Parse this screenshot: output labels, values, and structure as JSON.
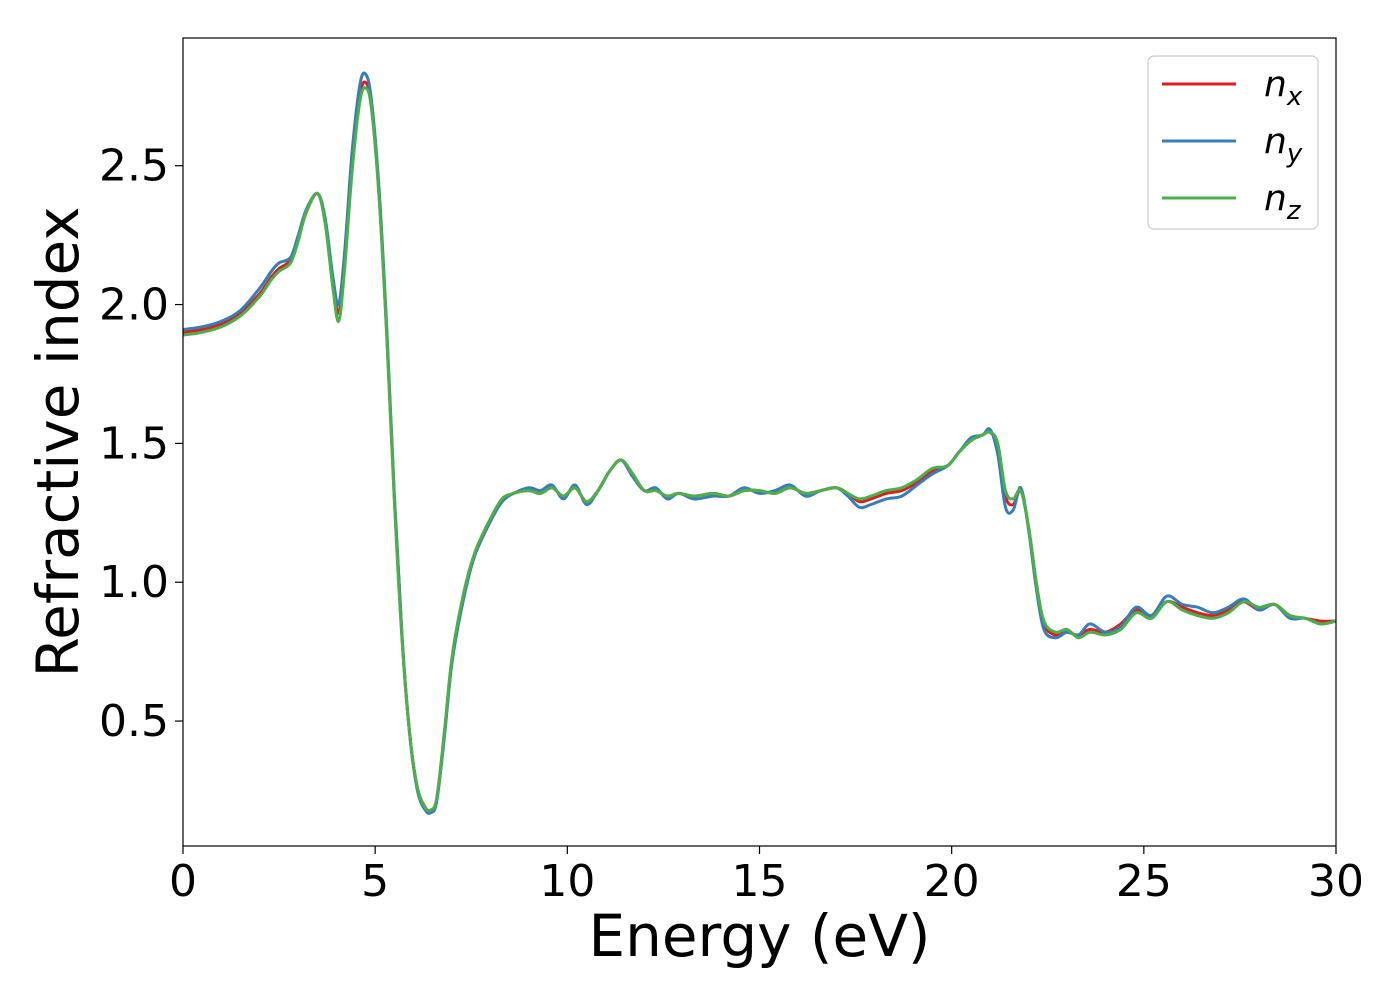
{
  "chart_data": {
    "type": "line",
    "xlabel": "Energy (eV)",
    "ylabel": "Refractive index",
    "xlim": [
      0,
      30
    ],
    "ylim": [
      0.05,
      2.96
    ],
    "xticks": [
      0,
      5,
      10,
      15,
      20,
      25,
      30
    ],
    "xtick_labels": [
      "0",
      "5",
      "10",
      "15",
      "20",
      "25",
      "30"
    ],
    "yticks": [
      0.5,
      1.0,
      1.5,
      2.0,
      2.5
    ],
    "ytick_labels": [
      "0.5",
      "1.0",
      "1.5",
      "2.0",
      "2.5"
    ],
    "grid": false,
    "legend_position": "top-right",
    "series": [
      {
        "name": "n",
        "subscript": "x",
        "color": "#e41a1c",
        "x": [
          0,
          0.5,
          1,
          1.5,
          2,
          2.3,
          2.5,
          2.8,
          3.0,
          3.2,
          3.5,
          3.7,
          3.9,
          4.05,
          4.2,
          4.4,
          4.6,
          4.75,
          4.9,
          5.1,
          5.3,
          5.5,
          5.7,
          5.9,
          6.1,
          6.3,
          6.45,
          6.6,
          6.8,
          7.0,
          7.3,
          7.6,
          8.0,
          8.3,
          8.6,
          9.0,
          9.3,
          9.6,
          9.9,
          10.2,
          10.5,
          10.8,
          11.1,
          11.4,
          11.7,
          12.0,
          12.3,
          12.6,
          12.9,
          13.3,
          13.8,
          14.2,
          14.6,
          15.0,
          15.4,
          15.8,
          16.2,
          16.6,
          17.0,
          17.3,
          17.6,
          17.9,
          18.3,
          18.7,
          19.1,
          19.5,
          19.9,
          20.2,
          20.5,
          20.8,
          21.0,
          21.2,
          21.4,
          21.6,
          21.8,
          22.0,
          22.2,
          22.4,
          22.7,
          23.0,
          23.3,
          23.6,
          24.0,
          24.4,
          24.8,
          25.2,
          25.6,
          26.0,
          26.4,
          26.8,
          27.2,
          27.6,
          28.0,
          28.4,
          28.8,
          29.2,
          29.6,
          30.0
        ],
        "values": [
          1.9,
          1.91,
          1.93,
          1.97,
          2.04,
          2.1,
          2.13,
          2.16,
          2.24,
          2.33,
          2.4,
          2.3,
          2.08,
          1.97,
          2.15,
          2.5,
          2.75,
          2.8,
          2.72,
          2.4,
          1.9,
          1.3,
          0.8,
          0.45,
          0.26,
          0.19,
          0.18,
          0.22,
          0.45,
          0.72,
          0.95,
          1.1,
          1.22,
          1.29,
          1.32,
          1.33,
          1.32,
          1.34,
          1.31,
          1.34,
          1.29,
          1.33,
          1.4,
          1.44,
          1.39,
          1.33,
          1.33,
          1.31,
          1.32,
          1.31,
          1.32,
          1.31,
          1.33,
          1.33,
          1.32,
          1.34,
          1.32,
          1.33,
          1.34,
          1.32,
          1.29,
          1.3,
          1.32,
          1.33,
          1.36,
          1.4,
          1.42,
          1.47,
          1.51,
          1.53,
          1.54,
          1.49,
          1.31,
          1.28,
          1.33,
          1.2,
          1.0,
          0.85,
          0.81,
          0.82,
          0.81,
          0.83,
          0.82,
          0.85,
          0.9,
          0.88,
          0.93,
          0.91,
          0.89,
          0.88,
          0.9,
          0.93,
          0.9,
          0.92,
          0.88,
          0.87,
          0.86,
          0.86
        ]
      },
      {
        "name": "n",
        "subscript": "y",
        "color": "#377eb8",
        "x": [
          0,
          0.5,
          1,
          1.5,
          2,
          2.3,
          2.5,
          2.8,
          3.0,
          3.2,
          3.5,
          3.7,
          3.9,
          4.05,
          4.2,
          4.4,
          4.6,
          4.75,
          4.9,
          5.1,
          5.3,
          5.5,
          5.7,
          5.9,
          6.1,
          6.3,
          6.45,
          6.6,
          6.8,
          7.0,
          7.3,
          7.6,
          8.0,
          8.3,
          8.6,
          9.0,
          9.3,
          9.6,
          9.9,
          10.2,
          10.5,
          10.8,
          11.1,
          11.4,
          11.7,
          12.0,
          12.3,
          12.6,
          12.9,
          13.3,
          13.8,
          14.2,
          14.6,
          15.0,
          15.4,
          15.8,
          16.2,
          16.6,
          17.0,
          17.3,
          17.6,
          17.9,
          18.3,
          18.7,
          19.1,
          19.5,
          19.9,
          20.2,
          20.5,
          20.8,
          21.0,
          21.2,
          21.4,
          21.6,
          21.8,
          22.0,
          22.2,
          22.4,
          22.7,
          23.0,
          23.3,
          23.6,
          24.0,
          24.4,
          24.8,
          25.2,
          25.6,
          26.0,
          26.4,
          26.8,
          27.2,
          27.6,
          28.0,
          28.4,
          28.8,
          29.2,
          29.6,
          30.0
        ],
        "values": [
          1.91,
          1.92,
          1.94,
          1.98,
          2.06,
          2.12,
          2.15,
          2.17,
          2.25,
          2.34,
          2.4,
          2.31,
          2.1,
          2.0,
          2.18,
          2.55,
          2.79,
          2.83,
          2.74,
          2.42,
          1.92,
          1.31,
          0.8,
          0.45,
          0.25,
          0.18,
          0.17,
          0.21,
          0.44,
          0.71,
          0.94,
          1.1,
          1.22,
          1.29,
          1.32,
          1.34,
          1.33,
          1.35,
          1.3,
          1.35,
          1.28,
          1.33,
          1.4,
          1.44,
          1.38,
          1.33,
          1.34,
          1.3,
          1.32,
          1.3,
          1.31,
          1.31,
          1.34,
          1.32,
          1.33,
          1.35,
          1.31,
          1.33,
          1.34,
          1.31,
          1.27,
          1.28,
          1.3,
          1.31,
          1.35,
          1.39,
          1.42,
          1.47,
          1.52,
          1.53,
          1.55,
          1.46,
          1.27,
          1.26,
          1.34,
          1.19,
          0.98,
          0.83,
          0.8,
          0.82,
          0.81,
          0.85,
          0.82,
          0.84,
          0.91,
          0.88,
          0.95,
          0.92,
          0.91,
          0.89,
          0.91,
          0.94,
          0.9,
          0.92,
          0.87,
          0.87,
          0.85,
          0.86
        ]
      },
      {
        "name": "n",
        "subscript": "z",
        "color": "#4daf4a",
        "x": [
          0,
          0.5,
          1,
          1.5,
          2,
          2.3,
          2.5,
          2.8,
          3.0,
          3.2,
          3.5,
          3.7,
          3.9,
          4.05,
          4.2,
          4.4,
          4.6,
          4.75,
          4.9,
          5.1,
          5.3,
          5.5,
          5.7,
          5.9,
          6.1,
          6.3,
          6.45,
          6.6,
          6.8,
          7.0,
          7.3,
          7.6,
          8.0,
          8.3,
          8.6,
          9.0,
          9.3,
          9.6,
          9.9,
          10.2,
          10.5,
          10.8,
          11.1,
          11.4,
          11.7,
          12.0,
          12.3,
          12.6,
          12.9,
          13.3,
          13.8,
          14.2,
          14.6,
          15.0,
          15.4,
          15.8,
          16.2,
          16.6,
          17.0,
          17.3,
          17.6,
          17.9,
          18.3,
          18.7,
          19.1,
          19.5,
          19.9,
          20.2,
          20.5,
          20.8,
          21.0,
          21.2,
          21.4,
          21.6,
          21.8,
          22.0,
          22.2,
          22.4,
          22.7,
          23.0,
          23.3,
          23.6,
          24.0,
          24.4,
          24.8,
          25.2,
          25.6,
          26.0,
          26.4,
          26.8,
          27.2,
          27.6,
          28.0,
          28.4,
          28.8,
          29.2,
          29.6,
          30.0
        ],
        "values": [
          1.89,
          1.9,
          1.92,
          1.96,
          2.03,
          2.09,
          2.12,
          2.15,
          2.23,
          2.33,
          2.4,
          2.29,
          2.06,
          1.94,
          2.12,
          2.48,
          2.73,
          2.78,
          2.71,
          2.39,
          1.89,
          1.29,
          0.79,
          0.45,
          0.26,
          0.19,
          0.18,
          0.22,
          0.46,
          0.73,
          0.96,
          1.11,
          1.23,
          1.3,
          1.32,
          1.33,
          1.32,
          1.34,
          1.31,
          1.34,
          1.29,
          1.33,
          1.4,
          1.44,
          1.39,
          1.33,
          1.33,
          1.31,
          1.32,
          1.31,
          1.32,
          1.31,
          1.33,
          1.33,
          1.32,
          1.34,
          1.32,
          1.33,
          1.34,
          1.32,
          1.3,
          1.31,
          1.33,
          1.34,
          1.37,
          1.41,
          1.42,
          1.47,
          1.51,
          1.53,
          1.54,
          1.5,
          1.33,
          1.3,
          1.33,
          1.2,
          1.0,
          0.86,
          0.82,
          0.83,
          0.8,
          0.82,
          0.81,
          0.83,
          0.89,
          0.87,
          0.93,
          0.9,
          0.88,
          0.87,
          0.89,
          0.93,
          0.91,
          0.92,
          0.88,
          0.87,
          0.85,
          0.86
        ]
      }
    ]
  }
}
